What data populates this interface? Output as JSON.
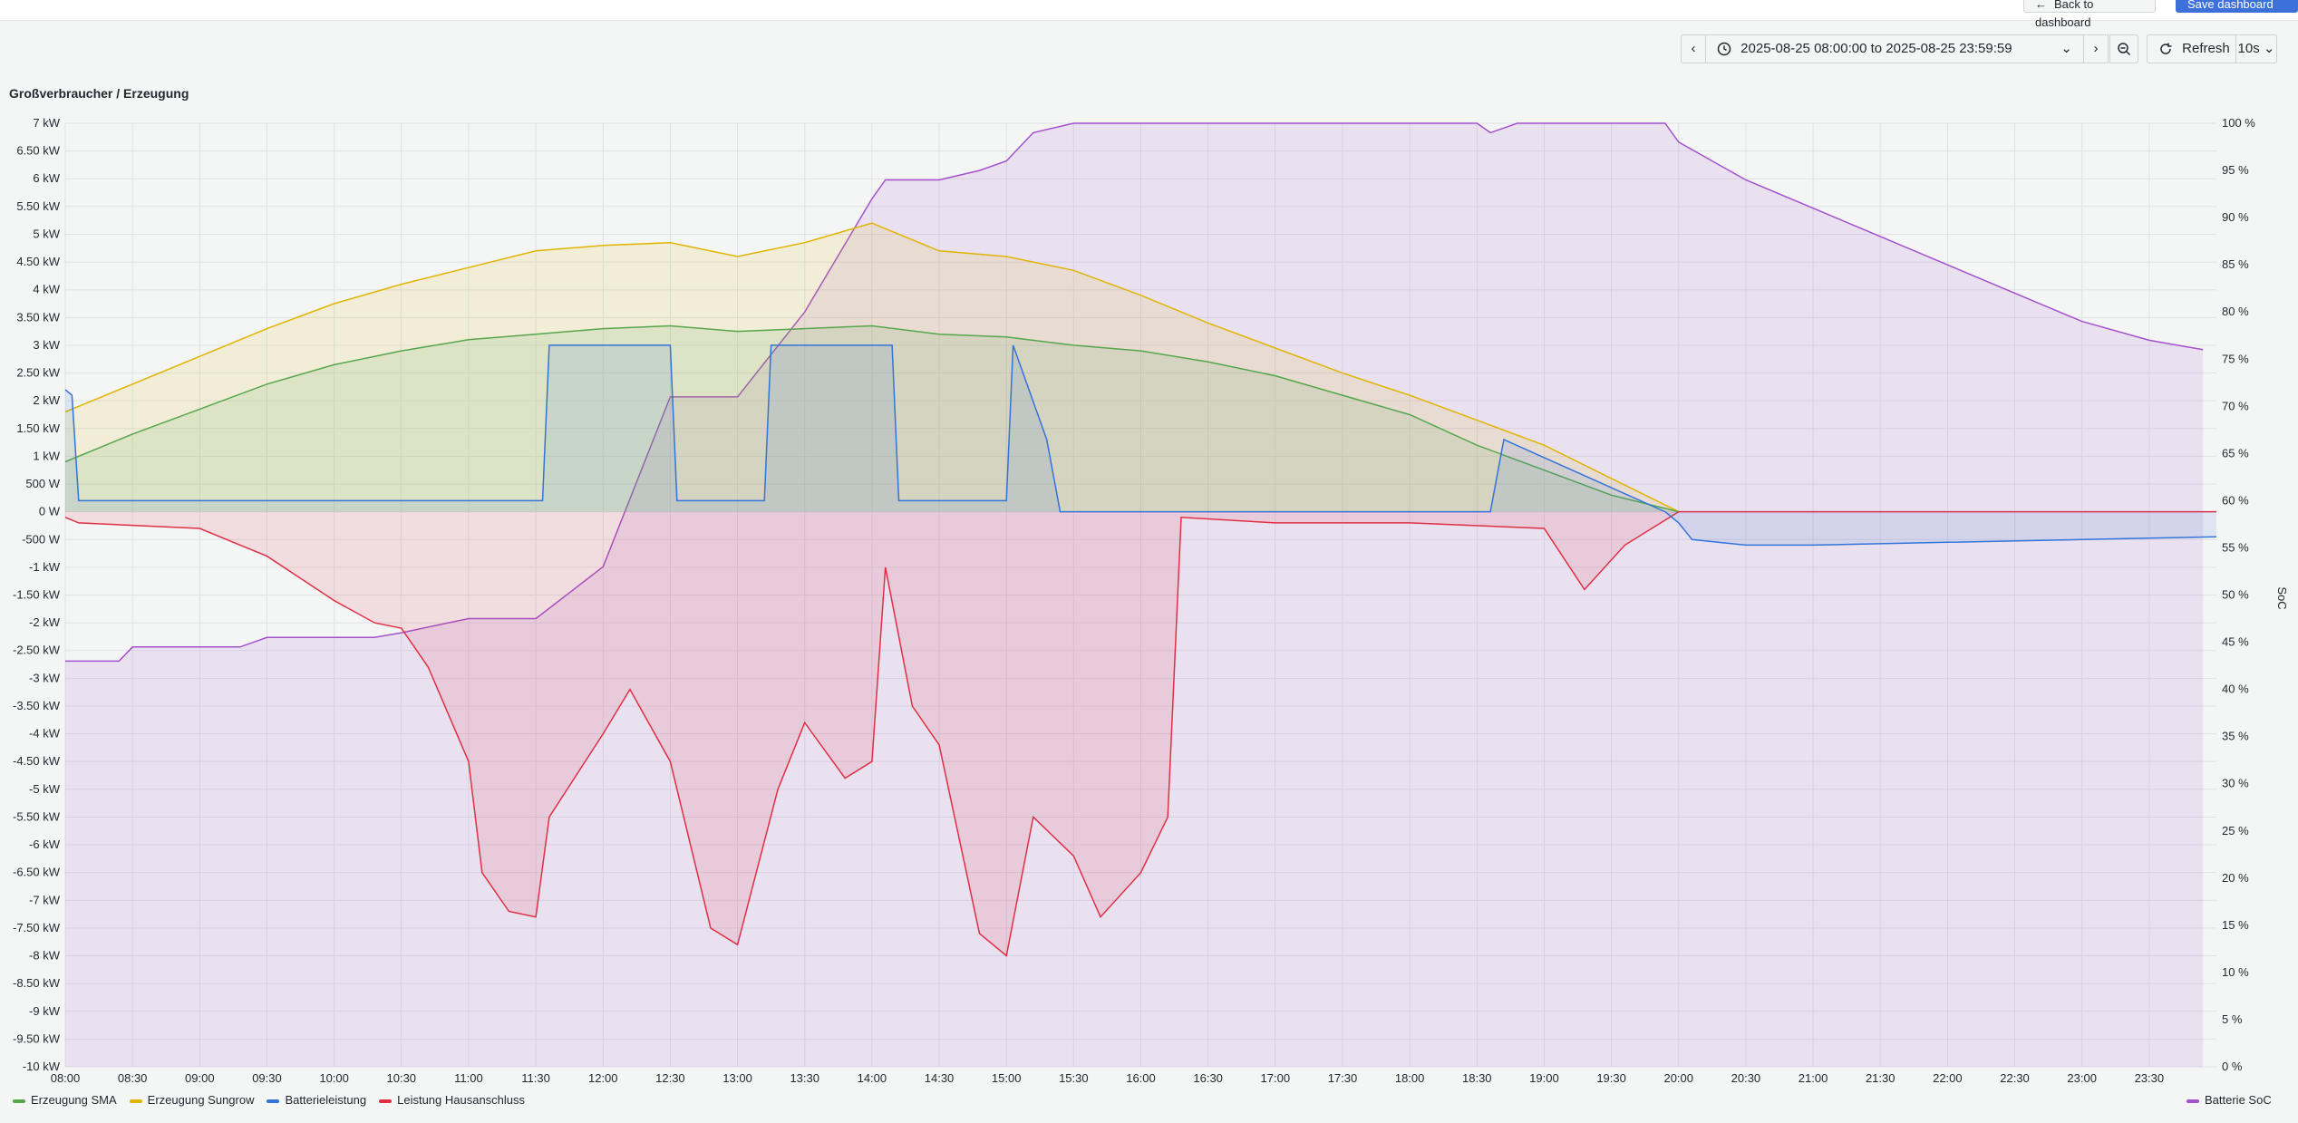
{
  "toolbar": {
    "back_label": "Back to dashboard",
    "save_label": "Save dashboard",
    "time_range": "2025-08-25 08:00:00 to 2025-08-25 23:59:59",
    "refresh_label": "Refresh",
    "refresh_interval": "10s"
  },
  "panel": {
    "title": "Großverbraucher / Erzeugung",
    "y2_axis_label": "SoC"
  },
  "legend": {
    "left": [
      {
        "name": "Erzeugung SMA",
        "color": "#56a64b"
      },
      {
        "name": "Erzeugung Sungrow",
        "color": "#e0b400"
      },
      {
        "name": "Batterieleistung",
        "color": "#3274d9"
      },
      {
        "name": "Leistung Hausanschluss",
        "color": "#e02f44"
      }
    ],
    "right": {
      "name": "Batterie SoC",
      "color": "#a352cc"
    }
  },
  "chart_data": {
    "type": "line",
    "x_ticks": [
      "08:00",
      "08:30",
      "09:00",
      "09:30",
      "10:00",
      "10:30",
      "11:00",
      "11:30",
      "12:00",
      "12:30",
      "13:00",
      "13:30",
      "14:00",
      "14:30",
      "15:00",
      "15:30",
      "16:00",
      "16:30",
      "17:00",
      "17:30",
      "18:00",
      "18:30",
      "19:00",
      "19:30",
      "20:00",
      "20:30",
      "21:00",
      "21:30",
      "22:00",
      "22:30",
      "23:00",
      "23:30"
    ],
    "y_ticks": [
      "7 kW",
      "6.50 kW",
      "6 kW",
      "5.50 kW",
      "5 kW",
      "4.50 kW",
      "4 kW",
      "3.50 kW",
      "3 kW",
      "2.50 kW",
      "2 kW",
      "1.50 kW",
      "1 kW",
      "500 W",
      "0 W",
      "-500 W",
      "-1 kW",
      "-1.50 kW",
      "-2 kW",
      "-2.50 kW",
      "-3 kW",
      "-3.50 kW",
      "-4 kW",
      "-4.50 kW",
      "-5 kW",
      "-5.50 kW",
      "-6 kW",
      "-6.50 kW",
      "-7 kW",
      "-7.50 kW",
      "-8 kW",
      "-8.50 kW",
      "-9 kW",
      "-9.50 kW",
      "-10 kW"
    ],
    "y2_ticks": [
      "100 %",
      "95 %",
      "90 %",
      "85 %",
      "80 %",
      "75 %",
      "70 %",
      "65 %",
      "60 %",
      "55 %",
      "50 %",
      "45 %",
      "40 %",
      "35 %",
      "30 %",
      "25 %",
      "20 %",
      "15 %",
      "10 %",
      "5 %",
      "0 %"
    ],
    "ylim": [
      -10,
      7
    ],
    "y2lim": [
      0,
      100
    ],
    "x_unit": "hour",
    "series": [
      {
        "name": "Erzeugung SMA",
        "axis": "left",
        "color": "#56a64b",
        "fill": true,
        "x": [
          8,
          8.5,
          9,
          9.5,
          10,
          10.5,
          11,
          11.5,
          12,
          12.5,
          13,
          13.5,
          14,
          14.5,
          15,
          15.5,
          16,
          16.5,
          17,
          17.5,
          18,
          18.5,
          19,
          19.5,
          20
        ],
        "y": [
          0.9,
          1.4,
          1.85,
          2.3,
          2.65,
          2.9,
          3.1,
          3.2,
          3.3,
          3.35,
          3.25,
          3.3,
          3.35,
          3.2,
          3.15,
          3.0,
          2.9,
          2.7,
          2.45,
          2.1,
          1.75,
          1.2,
          0.75,
          0.3,
          0.0
        ]
      },
      {
        "name": "Erzeugung Sungrow",
        "axis": "left",
        "color": "#e0b400",
        "fill": true,
        "x": [
          8,
          8.5,
          9,
          9.5,
          10,
          10.5,
          11,
          11.5,
          12,
          12.5,
          13,
          13.5,
          14,
          14.5,
          15,
          15.5,
          16,
          16.5,
          17,
          17.5,
          18,
          18.5,
          19,
          19.5,
          20
        ],
        "y": [
          1.8,
          2.3,
          2.8,
          3.3,
          3.75,
          4.1,
          4.4,
          4.7,
          4.8,
          4.85,
          4.6,
          4.85,
          5.2,
          4.7,
          4.6,
          4.35,
          3.9,
          3.4,
          2.95,
          2.5,
          2.1,
          1.65,
          1.2,
          0.6,
          0.0
        ]
      },
      {
        "name": "Batterieleistung",
        "axis": "left",
        "color": "#3274d9",
        "fill": true,
        "x": [
          8,
          8.05,
          8.1,
          9,
          10,
          11,
          11.55,
          11.6,
          12.5,
          12.55,
          13.2,
          13.25,
          14.15,
          14.2,
          15,
          15.05,
          15.3,
          15.4,
          16,
          17,
          18,
          18.6,
          18.7,
          19.9,
          20.0,
          20.1,
          20.5,
          21,
          22,
          23,
          24
        ],
        "y": [
          2.2,
          2.1,
          0.2,
          0.2,
          0.2,
          0.2,
          0.2,
          3.0,
          3.0,
          0.2,
          0.2,
          3.0,
          3.0,
          0.2,
          0.2,
          3.0,
          1.3,
          0.0,
          0.0,
          0.0,
          0.0,
          0.0,
          1.3,
          0.0,
          -0.2,
          -0.5,
          -0.6,
          -0.6,
          -0.55,
          -0.5,
          -0.45
        ]
      },
      {
        "name": "Leistung Hausanschluss",
        "axis": "left",
        "color": "#e02f44",
        "fill": true,
        "x": [
          8,
          8.1,
          9,
          9.5,
          10,
          10.3,
          10.5,
          10.7,
          11,
          11.1,
          11.3,
          11.5,
          11.6,
          12,
          12.2,
          12.5,
          12.8,
          13,
          13.3,
          13.5,
          13.8,
          14,
          14.1,
          14.3,
          14.5,
          14.8,
          15,
          15.2,
          15.5,
          15.7,
          16,
          16.2,
          16.3,
          17,
          18,
          19,
          19.3,
          19.6,
          20,
          24
        ],
        "y": [
          -0.1,
          -0.2,
          -0.3,
          -0.8,
          -1.6,
          -2.0,
          -2.1,
          -2.8,
          -4.5,
          -6.5,
          -7.2,
          -7.3,
          -5.5,
          -4.0,
          -3.2,
          -4.5,
          -7.5,
          -7.8,
          -5.0,
          -3.8,
          -4.8,
          -4.5,
          -1.0,
          -3.5,
          -4.2,
          -7.6,
          -8.0,
          -5.5,
          -6.2,
          -7.3,
          -6.5,
          -5.5,
          -0.1,
          -0.2,
          -0.2,
          -0.3,
          -1.4,
          -0.6,
          0.0,
          0.0
        ]
      },
      {
        "name": "Batterie SoC",
        "axis": "right",
        "color": "#a352cc",
        "fill": true,
        "x": [
          8,
          8.4,
          8.5,
          9.3,
          9.5,
          10.3,
          10.5,
          11,
          11.5,
          12,
          12.5,
          13,
          13.5,
          14,
          14.1,
          14.5,
          14.8,
          15,
          15.2,
          15.5,
          16,
          16.5,
          17,
          17.5,
          18,
          18.5,
          18.6,
          18.8,
          19,
          19.5,
          19.9,
          20,
          20.5,
          21,
          21.5,
          22,
          22.5,
          23,
          23.5,
          23.9
        ],
        "y": [
          43,
          43,
          44.5,
          44.5,
          45.5,
          45.5,
          46,
          47.5,
          47.5,
          53,
          71,
          71,
          80,
          92,
          94,
          94,
          95,
          96,
          99,
          100,
          100,
          100,
          100,
          100,
          100,
          100,
          99,
          100,
          100,
          100,
          100,
          98,
          94,
          91,
          88,
          85,
          82,
          79,
          77,
          76
        ]
      }
    ]
  }
}
